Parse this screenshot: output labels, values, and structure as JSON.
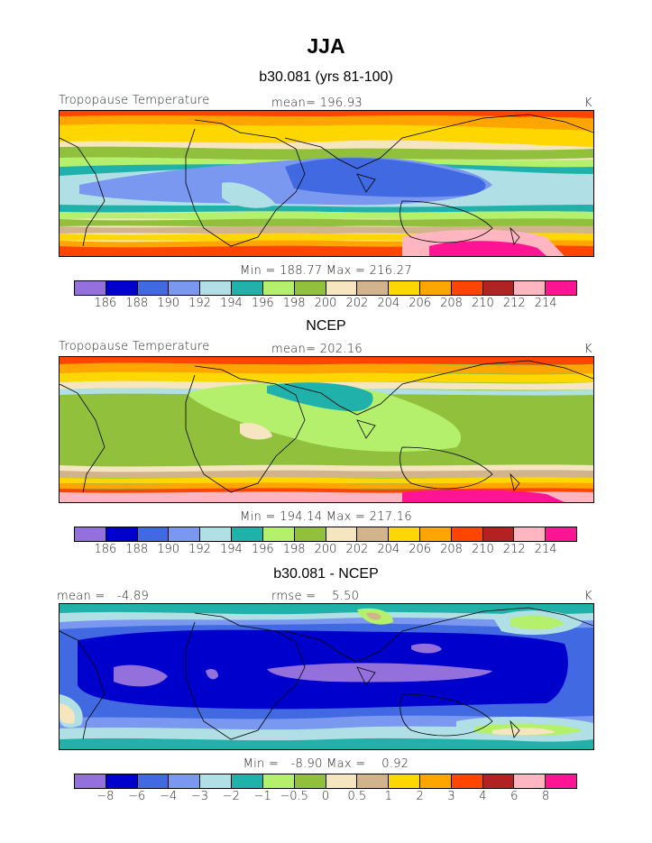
{
  "main_title": "JJA",
  "colors": {
    "abs_palette": [
      "#9370db",
      "#0000cd",
      "#4169e1",
      "#7a98f0",
      "#b0e0e6",
      "#20b2aa",
      "#2ab5a0",
      "#b4f06c",
      "#90c03c",
      "#f6e6c0",
      "#d2b48c",
      "#ffd700",
      "#ffa500",
      "#ff4500",
      "#b22222",
      "#ffb6c1",
      "#ff1493"
    ],
    "diff_palette": [
      "#9370db",
      "#0000cd",
      "#4169e1",
      "#7a98f0",
      "#b0e0e6",
      "#20b2aa",
      "#b4f06c",
      "#90c03c",
      "#f6e6c0",
      "#d2b48c",
      "#ffd700",
      "#ffa500",
      "#ff4500",
      "#b22222",
      "#ffb6c1",
      "#ff1493"
    ]
  },
  "panels": [
    {
      "title": "b30.081 (yrs 81-100)",
      "left_label": "Tropopause Temperature",
      "center_label": "mean= 196.93",
      "right_label": "K",
      "stats": "Min = 188.77 Max = 216.27",
      "ticks": [
        "186",
        "188",
        "190",
        "192",
        "194",
        "196",
        "198",
        "200",
        "202",
        "204",
        "206",
        "208",
        "210",
        "212",
        "214"
      ]
    },
    {
      "title": "NCEP",
      "left_label": "Tropopause Temperature",
      "center_label": "mean= 202.16",
      "right_label": "K",
      "stats": "Min = 194.14 Max = 217.16",
      "ticks": [
        "186",
        "188",
        "190",
        "192",
        "194",
        "196",
        "198",
        "200",
        "202",
        "204",
        "206",
        "208",
        "210",
        "212",
        "214"
      ]
    },
    {
      "title": "b30.081 - NCEP",
      "left_label": "mean =   -4.89",
      "center_label": "rmse =    5.50",
      "right_label": "K",
      "stats": "Min =   -8.90 Max =    0.92",
      "ticks": [
        "−8",
        "−6",
        "−4",
        "−3",
        "−2",
        "−1",
        "−0.5",
        "0",
        "0.5",
        "1",
        "2",
        "3",
        "4",
        "6",
        "8"
      ]
    }
  ]
}
